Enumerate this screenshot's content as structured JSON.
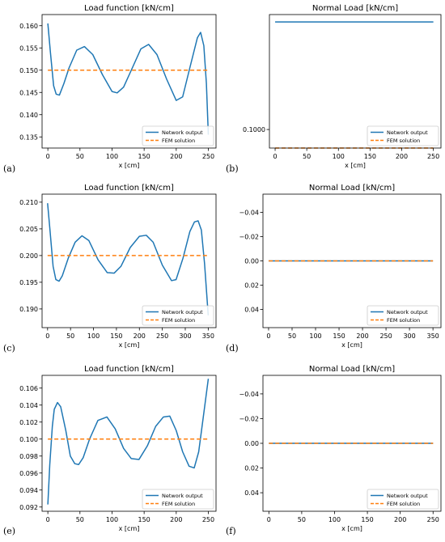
{
  "colors": {
    "network": "#1f77b4",
    "fem": "#ff7f0e",
    "axis": "#000000"
  },
  "panels": [
    {
      "label": "(a)"
    },
    {
      "label": "(b)"
    },
    {
      "label": "(c)"
    },
    {
      "label": "(d)"
    },
    {
      "label": "(e)"
    },
    {
      "label": "(f)"
    }
  ],
  "chart_data": [
    {
      "type": "line",
      "title": "Load function [kN/cm]",
      "xlabel": "x [cm]",
      "ylabel": "",
      "xlim": [
        -9,
        262
      ],
      "ylim": [
        0.1325,
        0.1625
      ],
      "xticks": [
        0,
        50,
        100,
        150,
        200,
        250
      ],
      "yticks": [
        0.135,
        0.14,
        0.145,
        0.15,
        0.155,
        0.16
      ],
      "ytick_labels": [
        "0.135",
        "0.140",
        "0.145",
        "0.150",
        "0.155",
        "0.160"
      ],
      "y_inverted": false,
      "legend": "bottom-right",
      "series": [
        {
          "name": "Network output",
          "style": "solid",
          "x": [
            0,
            4,
            9,
            13,
            18,
            25,
            33,
            45,
            57,
            70,
            85,
            100,
            108,
            118,
            130,
            145,
            157,
            170,
            185,
            200,
            210,
            222,
            233,
            238,
            243,
            247,
            250
          ],
          "y": [
            0.1605,
            0.154,
            0.1465,
            0.1446,
            0.1444,
            0.147,
            0.1505,
            0.1545,
            0.1553,
            0.1535,
            0.149,
            0.1452,
            0.1449,
            0.1462,
            0.15,
            0.1548,
            0.1558,
            0.1535,
            0.148,
            0.1432,
            0.144,
            0.151,
            0.1573,
            0.1585,
            0.1555,
            0.147,
            0.1355
          ]
        },
        {
          "name": "FEM solution",
          "style": "dashed",
          "x": [
            0,
            250
          ],
          "y": [
            0.15,
            0.15
          ]
        }
      ]
    },
    {
      "type": "line",
      "title": "Normal Load [kN/cm]",
      "xlabel": "x [cm]",
      "ylabel": "",
      "xlim": [
        -9,
        262
      ],
      "ylim": [
        0.09999,
        0.100062
      ],
      "xticks": [
        0,
        50,
        100,
        150,
        200,
        250
      ],
      "yticks": [
        0.1,
        0.1001,
        0.1002,
        0.1003,
        0.1004,
        0.1005
      ],
      "ytick_labels": [
        "0.1000",
        "0.1001",
        "0.1002",
        "0.1003",
        "0.1004",
        "0.1005"
      ],
      "y_inverted": true,
      "legend": "bottom-right",
      "series": [
        {
          "name": "Network output",
          "style": "solid",
          "x": [
            0,
            250
          ],
          "y": [
            0.100058,
            0.100058
          ]
        },
        {
          "name": "FEM solution",
          "style": "dashed",
          "x": [
            0,
            250
          ],
          "y": [
            0.09999,
            0.09999
          ]
        }
      ]
    },
    {
      "type": "line",
      "title": "Load function [kN/cm]",
      "xlabel": "x [cm]",
      "ylabel": "",
      "xlim": [
        -12,
        367
      ],
      "ylim": [
        0.1865,
        0.2115
      ],
      "xticks": [
        0,
        50,
        100,
        150,
        200,
        250,
        300,
        350
      ],
      "yticks": [
        0.19,
        0.195,
        0.2,
        0.205,
        0.21
      ],
      "ytick_labels": [
        "0.190",
        "0.195",
        "0.200",
        "0.205",
        "0.210"
      ],
      "y_inverted": false,
      "legend": "bottom-right",
      "series": [
        {
          "name": "Network output",
          "style": "solid",
          "x": [
            0,
            5,
            12,
            18,
            25,
            32,
            45,
            60,
            75,
            90,
            110,
            130,
            145,
            160,
            180,
            200,
            215,
            230,
            250,
            270,
            280,
            295,
            310,
            320,
            328,
            335,
            342,
            350
          ],
          "y": [
            0.2098,
            0.205,
            0.198,
            0.1955,
            0.1952,
            0.1962,
            0.1995,
            0.2025,
            0.2037,
            0.2028,
            0.1992,
            0.1968,
            0.1967,
            0.198,
            0.2015,
            0.2036,
            0.2038,
            0.2025,
            0.1982,
            0.1953,
            0.1955,
            0.1995,
            0.2045,
            0.2063,
            0.2065,
            0.2048,
            0.1985,
            0.1888
          ]
        },
        {
          "name": "FEM solution",
          "style": "dashed",
          "x": [
            0,
            350
          ],
          "y": [
            0.2,
            0.2
          ]
        }
      ]
    },
    {
      "type": "line",
      "title": "Normal Load [kN/cm]",
      "xlabel": "x [cm]",
      "ylabel": "",
      "xlim": [
        -12,
        367
      ],
      "ylim": [
        0.055,
        -0.055
      ],
      "xticks": [
        0,
        50,
        100,
        150,
        200,
        250,
        300,
        350
      ],
      "yticks": [
        -0.04,
        -0.02,
        0.0,
        0.02,
        0.04
      ],
      "ytick_labels": [
        "−0.04",
        "−0.02",
        "0.00",
        "0.02",
        "0.04"
      ],
      "y_inverted": true,
      "legend": "bottom-right",
      "series": [
        {
          "name": "Network output",
          "style": "solid",
          "x": [
            0,
            350
          ],
          "y": [
            0.0,
            0.0
          ]
        },
        {
          "name": "FEM solution",
          "style": "dashed",
          "x": [
            0,
            350
          ],
          "y": [
            0.0,
            0.0
          ]
        }
      ]
    },
    {
      "type": "line",
      "title": "Load function [kN/cm]",
      "xlabel": "x [cm]",
      "ylabel": "",
      "xlim": [
        -9,
        262
      ],
      "ylim": [
        0.0915,
        0.1075
      ],
      "xticks": [
        0,
        50,
        100,
        150,
        200,
        250
      ],
      "yticks": [
        0.092,
        0.094,
        0.096,
        0.098,
        0.1,
        0.102,
        0.104,
        0.106
      ],
      "ytick_labels": [
        "0.092",
        "0.094",
        "0.096",
        "0.098",
        "0.100",
        "0.102",
        "0.104",
        "0.106"
      ],
      "y_inverted": false,
      "legend": "bottom-right",
      "series": [
        {
          "name": "Network output",
          "style": "solid",
          "x": [
            0,
            3,
            7,
            10,
            15,
            20,
            28,
            35,
            42,
            48,
            55,
            65,
            78,
            92,
            105,
            118,
            130,
            142,
            155,
            168,
            180,
            190,
            200,
            210,
            220,
            228,
            235,
            242,
            250
          ],
          "y": [
            0.0923,
            0.097,
            0.1015,
            0.1035,
            0.1043,
            0.1038,
            0.101,
            0.098,
            0.0971,
            0.097,
            0.0978,
            0.1,
            0.1022,
            0.1026,
            0.1012,
            0.0989,
            0.0977,
            0.0976,
            0.0992,
            0.1015,
            0.1026,
            0.1027,
            0.101,
            0.0985,
            0.0968,
            0.0966,
            0.0985,
            0.1025,
            0.1071
          ]
        },
        {
          "name": "FEM solution",
          "style": "dashed",
          "x": [
            0,
            250
          ],
          "y": [
            0.1,
            0.1
          ]
        }
      ]
    },
    {
      "type": "line",
      "title": "Normal Load [kN/cm]",
      "xlabel": "x [cm]",
      "ylabel": "",
      "xlim": [
        -9,
        262
      ],
      "ylim": [
        0.055,
        -0.055
      ],
      "xticks": [
        0,
        50,
        100,
        150,
        200,
        250
      ],
      "yticks": [
        -0.04,
        -0.02,
        0.0,
        0.02,
        0.04
      ],
      "ytick_labels": [
        "−0.04",
        "−0.02",
        "0.00",
        "0.02",
        "0.04"
      ],
      "y_inverted": true,
      "legend": "bottom-right",
      "series": [
        {
          "name": "Network output",
          "style": "solid",
          "x": [
            0,
            250
          ],
          "y": [
            0.0,
            0.0
          ]
        },
        {
          "name": "FEM solution",
          "style": "dashed",
          "x": [
            0,
            250
          ],
          "y": [
            0.0,
            0.0
          ]
        }
      ]
    }
  ]
}
